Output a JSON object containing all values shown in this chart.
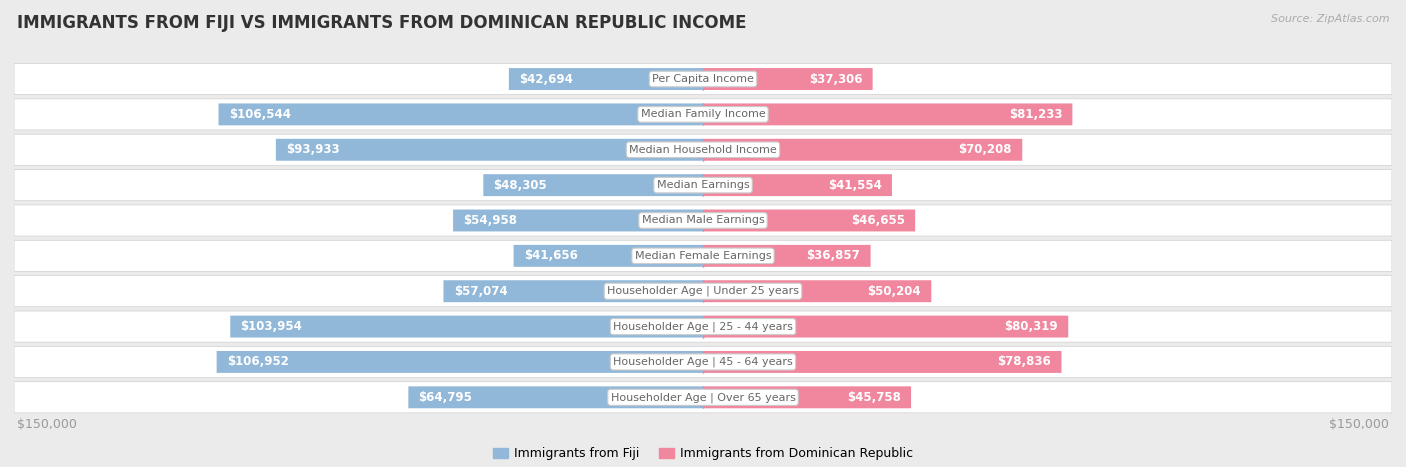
{
  "title": "IMMIGRANTS FROM FIJI VS IMMIGRANTS FROM DOMINICAN REPUBLIC INCOME",
  "source": "Source: ZipAtlas.com",
  "categories": [
    "Per Capita Income",
    "Median Family Income",
    "Median Household Income",
    "Median Earnings",
    "Median Male Earnings",
    "Median Female Earnings",
    "Householder Age | Under 25 years",
    "Householder Age | 25 - 44 years",
    "Householder Age | 45 - 64 years",
    "Householder Age | Over 65 years"
  ],
  "fiji_values": [
    42694,
    106544,
    93933,
    48305,
    54958,
    41656,
    57074,
    103954,
    106952,
    64795
  ],
  "dominican_values": [
    37306,
    81233,
    70208,
    41554,
    46655,
    36857,
    50204,
    80319,
    78836,
    45758
  ],
  "fiji_labels": [
    "$42,694",
    "$106,544",
    "$93,933",
    "$48,305",
    "$54,958",
    "$41,656",
    "$57,074",
    "$103,954",
    "$106,952",
    "$64,795"
  ],
  "dominican_labels": [
    "$37,306",
    "$81,233",
    "$70,208",
    "$41,554",
    "$46,655",
    "$36,857",
    "$50,204",
    "$80,319",
    "$78,836",
    "$45,758"
  ],
  "fiji_color": "#92b8d9",
  "dominican_color": "#f0879f",
  "fiji_inner_text": "#ffffff",
  "dominican_inner_text": "#ffffff",
  "outer_text_color": "#999999",
  "max_value": 150000,
  "legend_fiji": "Immigrants from Fiji",
  "legend_dominican": "Immigrants from Dominican Republic",
  "xlabel_left": "$150,000",
  "xlabel_right": "$150,000",
  "background_color": "#ebebeb",
  "row_bg_color": "#ffffff",
  "label_text_color": "#666666",
  "bar_height": 0.62,
  "inner_threshold": 30000,
  "title_fontsize": 12,
  "source_fontsize": 8,
  "bar_label_fontsize": 8.5,
  "cat_label_fontsize": 8
}
